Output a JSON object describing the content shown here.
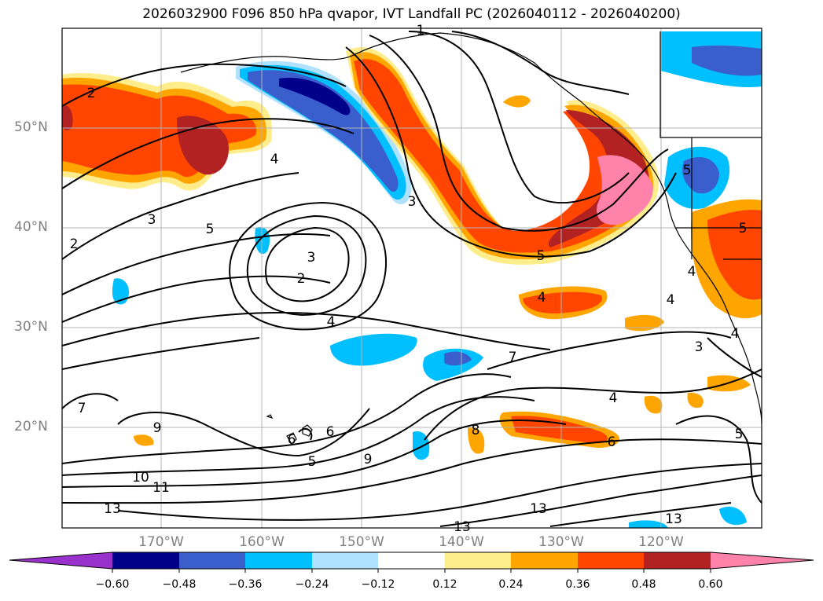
{
  "title": "2026032900 F096 850 hPa qvapor, IVT Landfall PC (2026040112 - 2026040200)",
  "lat_labels": [
    "50°N",
    "40°N",
    "30°N",
    "20°N"
  ],
  "lon_labels": [
    "170°W",
    "160°W",
    "150°W",
    "140°W",
    "130°W",
    "120°W"
  ],
  "colorbar": {
    "ticks": [
      "−0.60",
      "−0.48",
      "−0.36",
      "−0.24",
      "−0.12",
      "0.12",
      "0.24",
      "0.36",
      "0.48",
      "0.60"
    ],
    "colors": [
      "#9932cc",
      "#00008b",
      "#3a5fcd",
      "#00bfff",
      "#b0e2ff",
      "#ffffff",
      "#ffec8b",
      "#ffa500",
      "#ff4500",
      "#b22222",
      "#ff82ab"
    ]
  },
  "contour_labels": [
    "2",
    "4",
    "3",
    "5",
    "2",
    "3",
    "2",
    "4",
    "3",
    "5",
    "5",
    "4",
    "4",
    "4",
    "3",
    "7",
    "7",
    "9",
    "6",
    "6",
    "5",
    "9",
    "8",
    "10",
    "11",
    "13",
    "13",
    "6",
    "4",
    "13",
    "13",
    "5",
    "1",
    "5",
    "4"
  ]
}
